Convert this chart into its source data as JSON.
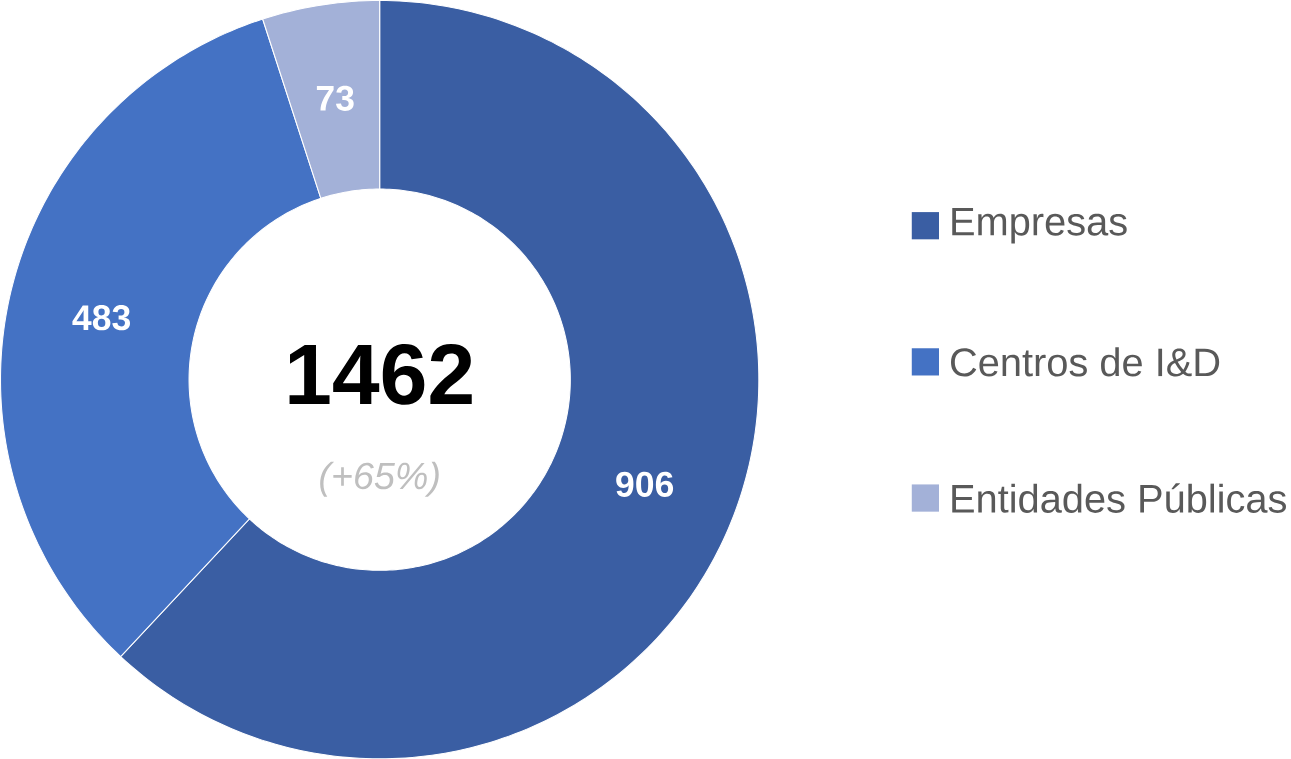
{
  "chart_data": {
    "type": "donut",
    "categories": [
      "Empresas",
      "Centros de I&D",
      "Entidades Públicas"
    ],
    "values": [
      906,
      483,
      73
    ],
    "colors": [
      "#3a5ea3",
      "#4472c4",
      "#a3b1d8"
    ],
    "data_labels": true,
    "legend": "right",
    "annotations": [
      "1462",
      "(+65%)"
    ]
  }
}
